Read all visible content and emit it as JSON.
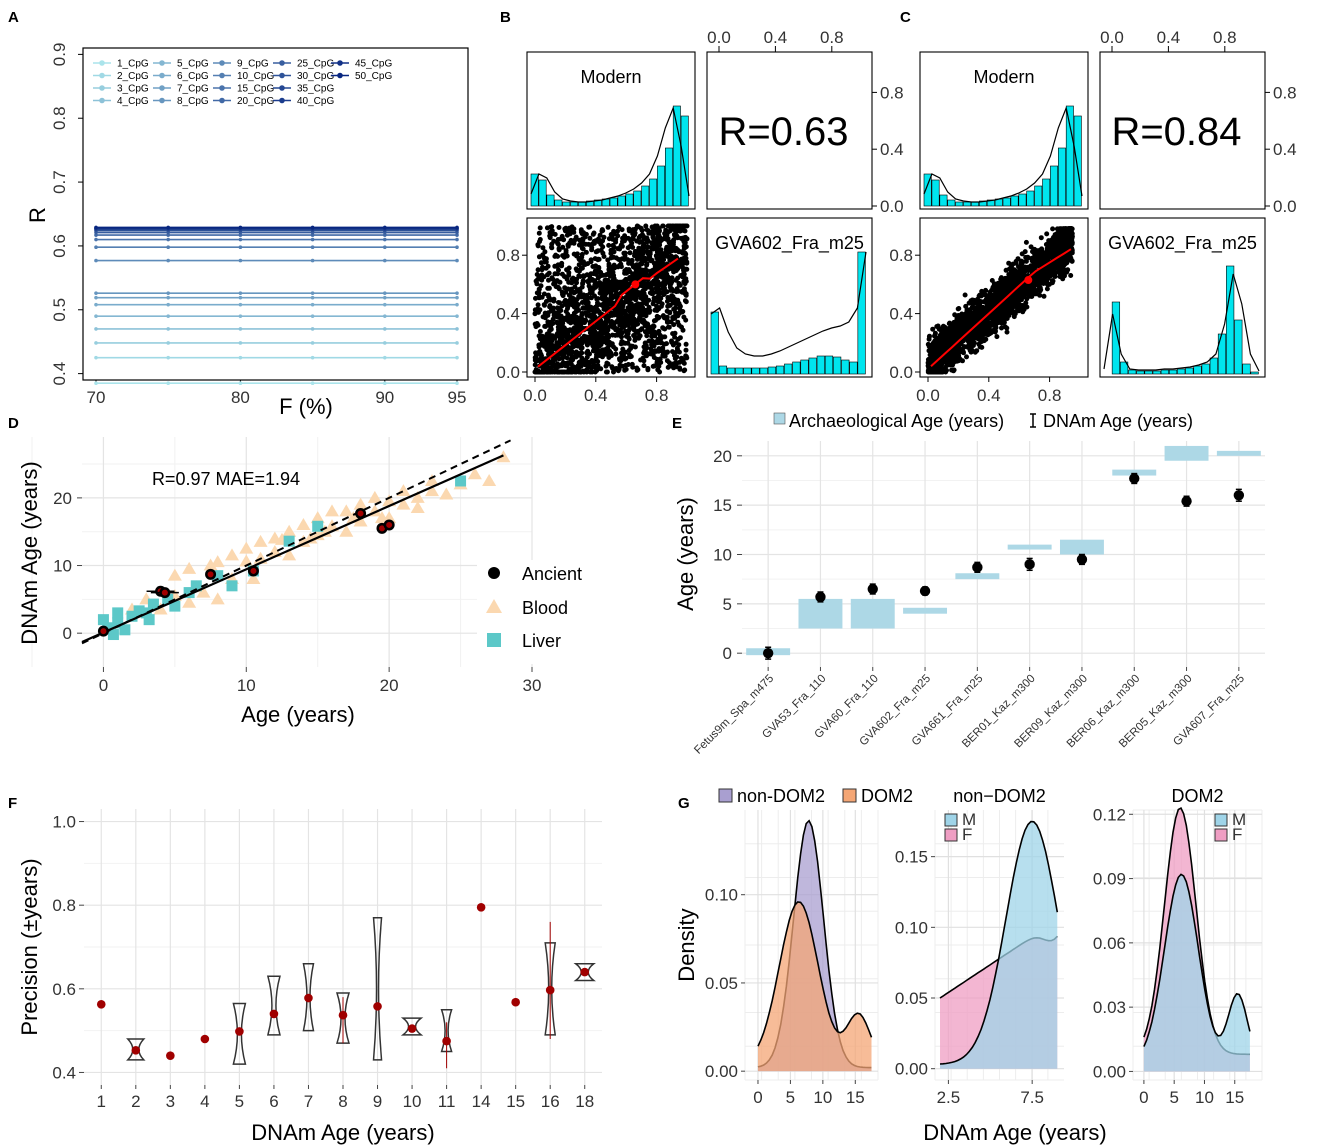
{
  "panel_letters": [
    "A",
    "B",
    "C",
    "D",
    "E",
    "F",
    "G"
  ],
  "colors": {
    "cyan": "#00e5ee",
    "red": "#ff0000",
    "blood": "#fbd8b0",
    "liver": "#5cc8c8",
    "archaeo": "#add8e6",
    "darkred": "#a00000",
    "purple": "#a99fd0",
    "orange": "#f4a675",
    "pink": "#ef9ec3",
    "lightblue": "#9fd4e8"
  },
  "chart_data": [
    {
      "panel": "A",
      "type": "line",
      "xlabel": "F (%)",
      "ylabel": "R",
      "xlim": [
        70,
        95
      ],
      "ylim": [
        0.39,
        0.91
      ],
      "xticks": [
        "70",
        "80",
        "90",
        "95"
      ],
      "yticks": [
        "0.4",
        "0.5",
        "0.6",
        "0.7",
        "0.8",
        "0.9"
      ],
      "x": [
        70,
        75,
        80,
        85,
        90,
        95
      ],
      "series": [
        {
          "name": "1_CpG",
          "value": 0.385
        },
        {
          "name": "2_CpG",
          "value": 0.425
        },
        {
          "name": "3_CpG",
          "value": 0.448
        },
        {
          "name": "4_CpG",
          "value": 0.47
        },
        {
          "name": "5_CpG",
          "value": 0.49
        },
        {
          "name": "6_CpG",
          "value": 0.508
        },
        {
          "name": "7_CpG",
          "value": 0.519
        },
        {
          "name": "8_CpG",
          "value": 0.526
        },
        {
          "name": "9_CpG",
          "value": 0.577
        },
        {
          "name": "10_CpG",
          "value": 0.598
        },
        {
          "name": "15_CpG",
          "value": 0.61
        },
        {
          "name": "20_CpG",
          "value": 0.617
        },
        {
          "name": "25_CpG",
          "value": 0.621
        },
        {
          "name": "30_CpG",
          "value": 0.624
        },
        {
          "name": "35_CpG",
          "value": 0.626
        },
        {
          "name": "40_CpG",
          "value": 0.627
        },
        {
          "name": "45_CpG",
          "value": 0.628
        },
        {
          "name": "50_CpG",
          "value": 0.629
        }
      ]
    },
    {
      "panel": "B",
      "type": "scatter",
      "facet_labels": [
        "Modern",
        "GVA602_Fra_m25"
      ],
      "r_label": "R=0.63",
      "ticks": [
        "0.0",
        "0.4",
        "0.8"
      ]
    },
    {
      "panel": "C",
      "type": "scatter",
      "facet_labels": [
        "Modern",
        "GVA602_Fra_m25"
      ],
      "r_label": "R=0.84",
      "ticks": [
        "0.0",
        "0.4",
        "0.8"
      ]
    },
    {
      "panel": "D",
      "type": "scatter",
      "xlabel": "Age (years)",
      "ylabel": "DNAm Age (years)",
      "xlim": [
        -1.5,
        30
      ],
      "ylim": [
        -5,
        29
      ],
      "xticks": [
        0,
        10,
        20,
        30
      ],
      "yticks": [
        0,
        10,
        20
      ],
      "annotation": "R=0.97 MAE=1.94",
      "legend": [
        "Ancient",
        "Blood",
        "Liver"
      ],
      "ancient": [
        [
          0,
          0.3
        ],
        [
          4,
          6.2
        ],
        [
          4.3,
          6
        ],
        [
          7.5,
          8.7
        ],
        [
          10.5,
          9.2
        ],
        [
          18,
          17.7
        ],
        [
          19.5,
          15.5
        ],
        [
          20,
          16
        ]
      ],
      "liver": [
        [
          0,
          2
        ],
        [
          0.3,
          0.8
        ],
        [
          0.7,
          -0.2
        ],
        [
          1,
          1.5
        ],
        [
          1,
          3
        ],
        [
          1.5,
          0.5
        ],
        [
          2,
          2.5
        ],
        [
          2.5,
          3.3
        ],
        [
          3,
          3
        ],
        [
          3.2,
          2
        ],
        [
          3.5,
          4.3
        ],
        [
          4.5,
          5
        ],
        [
          5,
          4
        ],
        [
          6,
          6
        ],
        [
          6.5,
          7
        ],
        [
          8,
          8.5
        ],
        [
          9,
          7
        ],
        [
          10.5,
          9.2
        ],
        [
          13,
          13.6
        ],
        [
          15,
          15.8
        ],
        [
          25,
          22.5
        ]
      ],
      "blood": [
        [
          1,
          1.5
        ],
        [
          2,
          3.5
        ],
        [
          3,
          5
        ],
        [
          4,
          3.5
        ],
        [
          5,
          8.5
        ],
        [
          5,
          5.5
        ],
        [
          6,
          9.5
        ],
        [
          6,
          4.5
        ],
        [
          6.5,
          6.8
        ],
        [
          7,
          6
        ],
        [
          7.5,
          10
        ],
        [
          8,
          10.5
        ],
        [
          8,
          5
        ],
        [
          9,
          8
        ],
        [
          9,
          11.5
        ],
        [
          10,
          10.6
        ],
        [
          10,
          12.5
        ],
        [
          10.5,
          8
        ],
        [
          11,
          11
        ],
        [
          11,
          13.5
        ],
        [
          12,
          12
        ],
        [
          12,
          14
        ],
        [
          12.5,
          13.8
        ],
        [
          13,
          11.5
        ],
        [
          13,
          15
        ],
        [
          14,
          13.5
        ],
        [
          14,
          16
        ],
        [
          14.5,
          14
        ],
        [
          15,
          14.5
        ],
        [
          15,
          17
        ],
        [
          15.5,
          15
        ],
        [
          16,
          15.8
        ],
        [
          16,
          18
        ],
        [
          17,
          15
        ],
        [
          17,
          18
        ],
        [
          17.5,
          17
        ],
        [
          18,
          16.5
        ],
        [
          18,
          19
        ],
        [
          19,
          18
        ],
        [
          19,
          20
        ],
        [
          19.5,
          17
        ],
        [
          20,
          17
        ],
        [
          20,
          19.5
        ],
        [
          21,
          19
        ],
        [
          21,
          21
        ],
        [
          22,
          18.5
        ],
        [
          22,
          20
        ],
        [
          23,
          21
        ],
        [
          23,
          22.5
        ],
        [
          24,
          20.5
        ],
        [
          25,
          22
        ],
        [
          26,
          23.5
        ],
        [
          27,
          22.5
        ],
        [
          28,
          26
        ]
      ]
    },
    {
      "panel": "E",
      "type": "bar",
      "ylabel": "Age (years)",
      "ylim": [
        -1.4,
        21.5
      ],
      "yticks": [
        0,
        5,
        10,
        15,
        20
      ],
      "legend": [
        "Archaeological Age (years)",
        "DNAm Age (years)"
      ],
      "categories": [
        "Fetus9m_Spa_m475",
        "GVA53_Fra_110",
        "GVA60_Fra_110",
        "GVA602_Fra_m25",
        "GVA661_Fra_m25",
        "BER01_Kaz_m300",
        "BER09_Kaz_m300",
        "BER06_Kaz_m300",
        "BER05_Kaz_m300",
        "GVA607_Fra_m25"
      ],
      "arch_low": [
        -0.2,
        2.5,
        2.5,
        4.0,
        7.5,
        10.5,
        10.0,
        18.0,
        19.5,
        20.0
      ],
      "arch_high": [
        0.5,
        5.5,
        5.5,
        4.6,
        8.1,
        11.0,
        11.5,
        18.6,
        21.0,
        20.5
      ],
      "dnam": [
        0.0,
        5.7,
        6.5,
        6.3,
        8.7,
        9.0,
        9.5,
        17.7,
        15.4,
        16.0
      ],
      "dnam_err": [
        0.6,
        0.5,
        0.5,
        0.4,
        0.5,
        0.6,
        0.5,
        0.5,
        0.5,
        0.6
      ]
    },
    {
      "panel": "F",
      "type": "scatter",
      "xlabel": "DNAm Age (years)",
      "ylabel": "Precision (±years)",
      "ylim": [
        0.37,
        1.03
      ],
      "yticks": [
        "0.4",
        "0.6",
        "0.8",
        "1.0"
      ],
      "categories": [
        "1",
        "2",
        "3",
        "4",
        "5",
        "6",
        "7",
        "8",
        "9",
        "10",
        "11",
        "14",
        "15",
        "16",
        "18"
      ],
      "means": [
        0.563,
        0.453,
        0.44,
        0.48,
        0.498,
        0.54,
        0.578,
        0.537,
        0.558,
        0.505,
        0.475,
        0.795,
        0.568,
        0.597,
        0.64
      ]
    },
    {
      "panel": "G",
      "type": "area",
      "xlabel": "DNAm Age (years)",
      "ylabel": "Density",
      "subplots": [
        {
          "legend": [
            "non-DOM2",
            "DOM2"
          ],
          "xticks": [
            "0",
            "5",
            "10",
            "15"
          ],
          "yticks": [
            "0.00",
            "0.05",
            "0.10"
          ]
        },
        {
          "title": "non−DOM2",
          "legend": [
            "M",
            "F"
          ],
          "xticks": [
            "2.5",
            "7.5"
          ],
          "yticks": [
            "0.00",
            "0.05",
            "0.10",
            "0.15"
          ]
        },
        {
          "title": "DOM2",
          "legend": [
            "M",
            "F"
          ],
          "xticks": [
            "0",
            "5",
            "10",
            "15"
          ],
          "yticks": [
            "0.00",
            "0.03",
            "0.06",
            "0.09",
            "0.12"
          ]
        }
      ]
    }
  ]
}
